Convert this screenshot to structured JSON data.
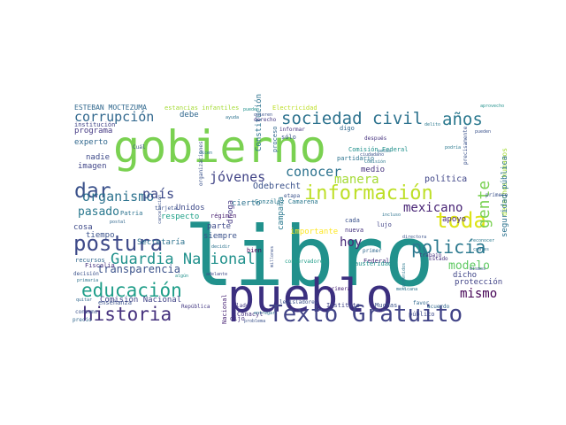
{
  "word_cloud": {
    "words": [
      {
        "text": "libro",
        "color": "#21918c"
      },
      {
        "text": "gobierno",
        "color": "#7ad151"
      },
      {
        "text": "pueblo",
        "color": "#3b2f7f"
      },
      {
        "text": "Texto Gratuito",
        "color": "#414487"
      },
      {
        "text": "postura",
        "color": "#3e4a89"
      },
      {
        "text": "información",
        "color": "#bddf26"
      },
      {
        "text": "historia",
        "color": "#46327e"
      },
      {
        "text": "educación",
        "color": "#1f9e89"
      },
      {
        "text": "sociedad civil",
        "color": "#2c728e"
      },
      {
        "text": "Guardia Nacional",
        "color": "#21918c"
      },
      {
        "text": "policía",
        "color": "#2a788e"
      },
      {
        "text": "toda",
        "color": "#dde318"
      },
      {
        "text": "dar",
        "color": "#3b528b"
      },
      {
        "text": "años",
        "color": "#2a788e"
      },
      {
        "text": "corrupción",
        "color": "#31688e"
      },
      {
        "text": "organismo",
        "color": "#2c728e"
      },
      {
        "text": "mexicano",
        "color": "#482475"
      },
      {
        "text": "gente",
        "color": "#7ad151"
      },
      {
        "text": "manera",
        "color": "#a5db36"
      },
      {
        "text": "jóvenes",
        "color": "#414487"
      },
      {
        "text": "conocer",
        "color": "#2c728e"
      },
      {
        "text": "país",
        "color": "#3e4a89"
      },
      {
        "text": "pasado",
        "color": "#2a788e"
      },
      {
        "text": "hoy",
        "color": "#482878"
      },
      {
        "text": "modelo",
        "color": "#5ec962"
      },
      {
        "text": "mismo",
        "color": "#440154"
      },
      {
        "text": "transparencia",
        "color": "#3b528b"
      },
      {
        "text": "Odebrecht",
        "color": "#3b528b"
      },
      {
        "text": "importante",
        "color": "#fde725"
      },
      {
        "text": "política",
        "color": "#404688"
      },
      {
        "text": "derechos humanos",
        "color": "#a5db36"
      },
      {
        "text": "seguridad pública",
        "color": "#2c728e"
      },
      {
        "text": "ESTEBAN MOCTEZUMA",
        "color": "#31688e"
      },
      {
        "text": "estancias infantiles",
        "color": "#a5db36"
      },
      {
        "text": "Electricidad",
        "color": "#bddf26"
      },
      {
        "text": "programa",
        "color": "#443983"
      },
      {
        "text": "experto",
        "color": "#31688e"
      },
      {
        "text": "nadie",
        "color": "#3e4a89"
      },
      {
        "text": "imagen",
        "color": "#404688"
      },
      {
        "text": "debe",
        "color": "#31688e"
      },
      {
        "text": "Constitución",
        "color": "#2c728e"
      },
      {
        "text": "Unidos",
        "color": "#3e4a89"
      },
      {
        "text": "respecto",
        "color": "#1fa188"
      },
      {
        "text": "tiempo",
        "color": "#3b528b"
      },
      {
        "text": "Secretaría",
        "color": "#2c728e"
      },
      {
        "text": "Comisión Nacional",
        "color": "#414487"
      },
      {
        "text": "Comisión Federal",
        "color": "#21918c"
      },
      {
        "text": "parte",
        "color": "#3e4a89"
      },
      {
        "text": "siempre",
        "color": "#3b528b"
      },
      {
        "text": "droga",
        "color": "#443983"
      },
      {
        "text": "campaña",
        "color": "#2a788e"
      },
      {
        "text": "cierto",
        "color": "#2c728e"
      },
      {
        "text": "apoyo",
        "color": "#482878"
      },
      {
        "text": "dicho",
        "color": "#404688"
      },
      {
        "text": "protección",
        "color": "#414487"
      },
      {
        "text": "medio",
        "color": "#46327e"
      },
      {
        "text": "cada",
        "color": "#3b528b"
      },
      {
        "text": "nueva",
        "color": "#46327e"
      },
      {
        "text": "Federal",
        "color": "#472d7b"
      },
      {
        "text": "Muchas",
        "color": "#3b528b"
      },
      {
        "text": "Instituto",
        "color": "#414487"
      },
      {
        "text": "cosa",
        "color": "#3e4a89"
      },
      {
        "text": "recursos",
        "color": "#31688e"
      },
      {
        "text": "Fiscalía",
        "color": "#46327e"
      },
      {
        "text": "primaria",
        "color": "#2c728e"
      },
      {
        "text": "enseñanza",
        "color": "#3b528b"
      },
      {
        "text": "consumo",
        "color": "#3b528b"
      },
      {
        "text": "precio",
        "color": "#31688e"
      },
      {
        "text": "Nacional",
        "color": "#482475"
      },
      {
        "text": "Conacyt",
        "color": "#46327e"
      },
      {
        "text": "lado",
        "color": "#443983"
      },
      {
        "text": "legisladores",
        "color": "#3b528b"
      },
      {
        "text": "favor",
        "color": "#31688e"
      },
      {
        "text": "austeridad",
        "color": "#21918c"
      },
      {
        "text": "conservadores",
        "color": "#1f9e89"
      },
      {
        "text": "primer",
        "color": "#31688e"
      },
      {
        "text": "primera",
        "color": "#482475"
      },
      {
        "text": "trabajo",
        "color": "#46327e"
      },
      {
        "text": "Estado",
        "color": "#46327e"
      },
      {
        "text": "régimen",
        "color": "#481f70"
      },
      {
        "text": "bien",
        "color": "#440154"
      },
      {
        "text": "adelante",
        "color": "#3e4a89"
      },
      {
        "text": "dijo",
        "color": "#46327e"
      },
      {
        "text": "problema",
        "color": "#3b528b"
      },
      {
        "text": "República",
        "color": "#443983"
      },
      {
        "text": "ayuda",
        "color": "#2c728e"
      },
      {
        "text": "derecho",
        "color": "#443983"
      },
      {
        "text": "informar",
        "color": "#46327e"
      },
      {
        "text": "digo",
        "color": "#31688e"
      },
      {
        "text": "sólo",
        "color": "#3b528b"
      },
      {
        "text": "proceso",
        "color": "#31688e"
      },
      {
        "text": "partidario",
        "color": "#2c728e"
      },
      {
        "text": "ciudadano",
        "color": "#3b528b"
      },
      {
        "text": "después",
        "color": "#46327e"
      },
      {
        "text": "precisamente",
        "color": "#3b528b"
      },
      {
        "text": "contenidos",
        "color": "#2a788e"
      },
      {
        "text": "mexicana",
        "color": "#2c728e"
      },
      {
        "text": "directora",
        "color": "#3b528b"
      },
      {
        "text": "pueden",
        "color": "#3b528b"
      },
      {
        "text": "podría",
        "color": "#2a788e"
      },
      {
        "text": "aprovecho",
        "color": "#21918c"
      },
      {
        "text": "primero",
        "color": "#3b528b"
      },
      {
        "text": "delito",
        "color": "#2a788e"
      },
      {
        "text": "incluso",
        "color": "#2c728e"
      },
      {
        "text": "lujo",
        "color": "#414487"
      },
      {
        "text": "González Camarena",
        "color": "#2a788e"
      },
      {
        "text": "etapa",
        "color": "#3b528b"
      },
      {
        "text": "millones",
        "color": "#3b528b"
      },
      {
        "text": "Patria",
        "color": "#2c728e"
      },
      {
        "text": "tarjeta",
        "color": "#3b528b"
      },
      {
        "text": "Cuál",
        "color": "#3b528b"
      },
      {
        "text": "institución",
        "color": "#414487"
      },
      {
        "text": "quitar",
        "color": "#31688e"
      },
      {
        "text": "decisión",
        "color": "#3b528b"
      },
      {
        "text": "acuerdo",
        "color": "#31688e"
      },
      {
        "text": "público",
        "color": "#3e4a89"
      },
      {
        "text": "entregar",
        "color": "#2c728e"
      },
      {
        "text": "cancelación",
        "color": "#3b528b"
      },
      {
        "text": "organizaciones",
        "color": "#3b528b"
      },
      {
        "text": "pueden",
        "color": "#21918c"
      },
      {
        "text": "quieren",
        "color": "#3b528b"
      },
      {
        "text": "reconocer",
        "color": "#2a788e"
      },
      {
        "text": "cuales",
        "color": "#2c728e"
      },
      {
        "text": "postal",
        "color": "#31688e"
      },
      {
        "text": "pesos",
        "color": "#2c728e"
      },
      {
        "text": "Comisión",
        "color": "#2a788e"
      },
      {
        "text": "mismos",
        "color": "#3b528b"
      },
      {
        "text": "decidir",
        "color": "#2c728e"
      },
      {
        "text": "dicen",
        "color": "#2c728e"
      },
      {
        "text": "algún",
        "color": "#21918c"
      }
    ]
  }
}
